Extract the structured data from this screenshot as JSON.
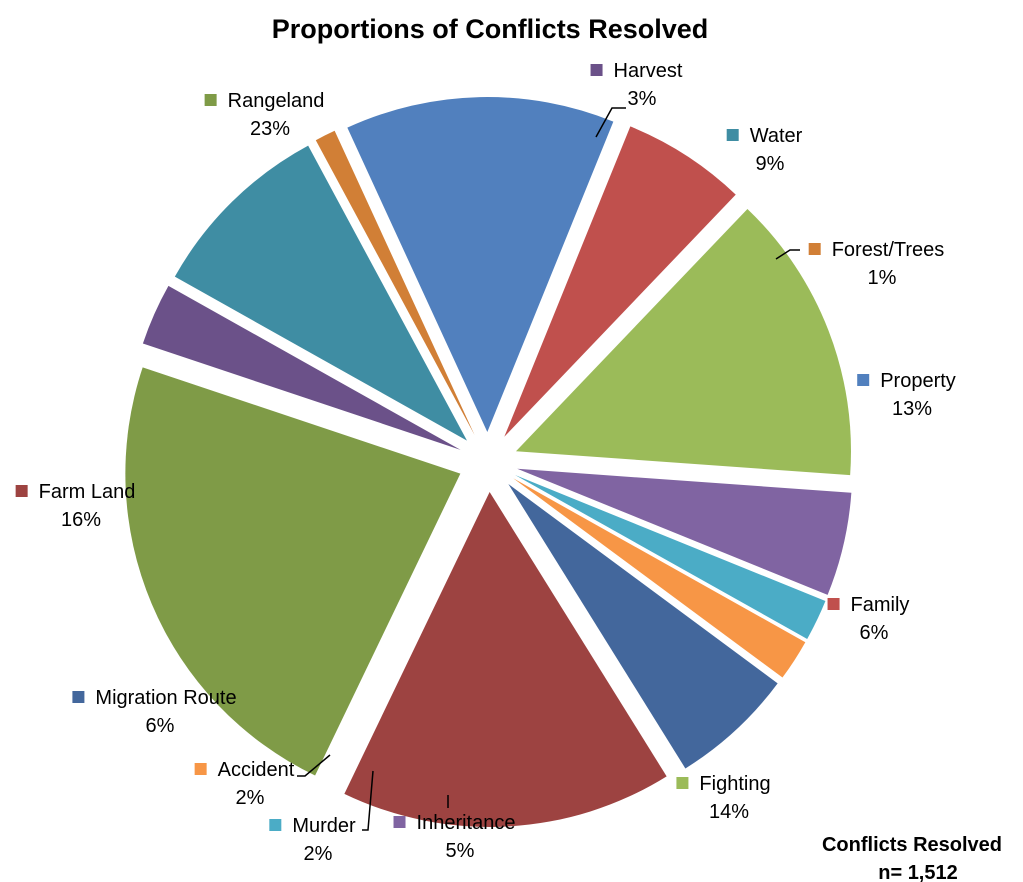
{
  "chart_data": {
    "type": "pie",
    "title": "Proportions of Conflicts Resolved",
    "slices": [
      {
        "name": "Harvest",
        "value": 3,
        "label": "3%",
        "color": "#6B5189"
      },
      {
        "name": "Water",
        "value": 9,
        "label": "9%",
        "color": "#3F8DA3"
      },
      {
        "name": "Forest/Trees",
        "value": 1,
        "label": "1%",
        "color": "#D17F36"
      },
      {
        "name": "Property",
        "value": 13,
        "label": "13%",
        "color": "#5180BE"
      },
      {
        "name": "Family",
        "value": 6,
        "label": "6%",
        "color": "#C0504D"
      },
      {
        "name": "Fighting",
        "value": 14,
        "label": "14%",
        "color": "#9BBB59"
      },
      {
        "name": "Inheritance",
        "value": 5,
        "label": "5%",
        "color": "#8064A2"
      },
      {
        "name": "Murder",
        "value": 2,
        "label": "2%",
        "color": "#4BACC6"
      },
      {
        "name": "Accident",
        "value": 2,
        "label": "2%",
        "color": "#F79646"
      },
      {
        "name": "Migration Route",
        "value": 6,
        "label": "6%",
        "color": "#43679C"
      },
      {
        "name": "Farm Land",
        "value": 16,
        "label": "16%",
        "color": "#9D4341"
      },
      {
        "name": "Rangeland",
        "value": 23,
        "label": "23%",
        "color": "#7F9B47"
      }
    ]
  },
  "note": {
    "line1": "Conflicts Resolved",
    "line2": "n= 1,512"
  }
}
